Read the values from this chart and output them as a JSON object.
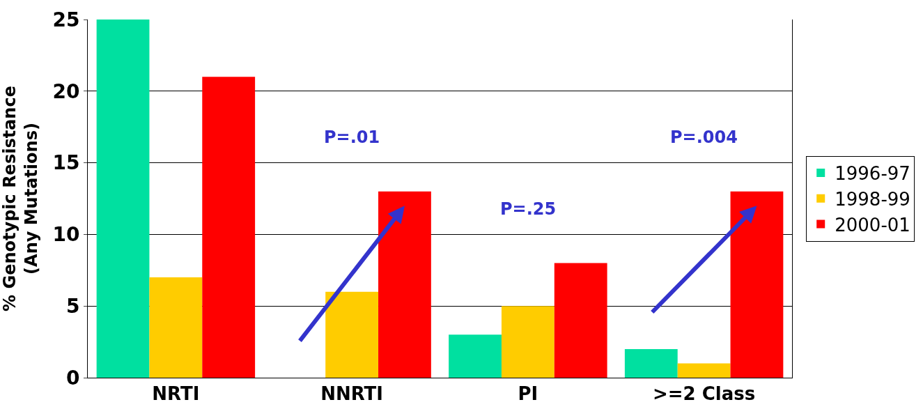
{
  "chart_data": {
    "type": "bar",
    "ylabel": "% Genotypic Resistance\n(Any Mutations)",
    "categories": [
      "NRTI",
      "NNRTI",
      "PI",
      ">=2 Class"
    ],
    "series": [
      {
        "name": "1996-97",
        "color": "#00e0a0",
        "values": [
          25,
          0,
          3,
          2
        ]
      },
      {
        "name": "1998-99",
        "color": "#ffcc00",
        "values": [
          7,
          6,
          5,
          1
        ]
      },
      {
        "name": "2000-01",
        "color": "#ff0000",
        "values": [
          21,
          13,
          8,
          13
        ]
      }
    ],
    "ylim": [
      0,
      25
    ],
    "yticks": [
      0,
      5,
      10,
      15,
      20,
      25
    ],
    "grid": "y",
    "legend": "right",
    "annotations": [
      "P=.01",
      "P=.25",
      "P=.004"
    ]
  }
}
